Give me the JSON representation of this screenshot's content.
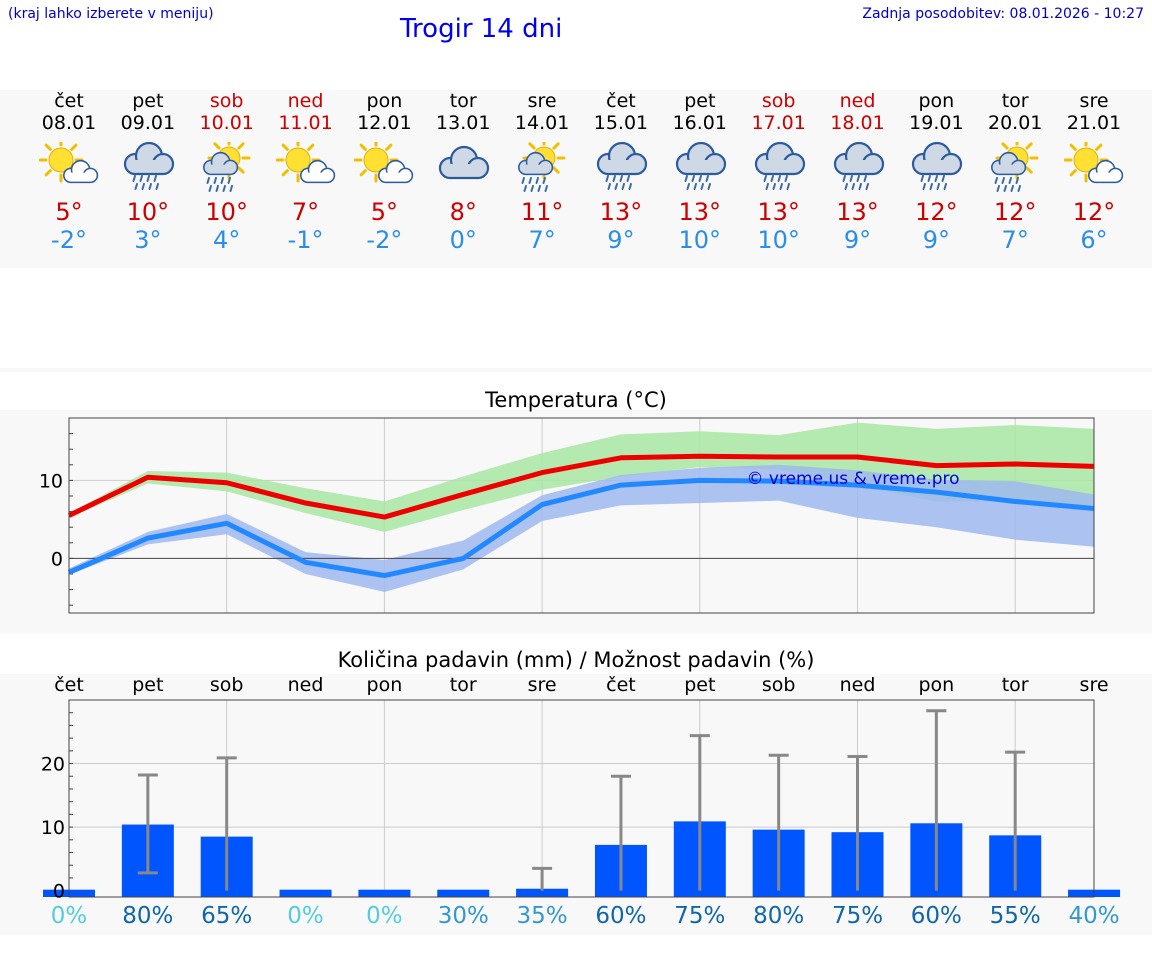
{
  "header": {
    "hint": "(kraj lahko izberete v meniju)",
    "title": "Trogir 14 dni",
    "updated": "Zadnja posodobitev: 08.01.2026 - 10:27"
  },
  "days": [
    {
      "name": "čet",
      "date": "08.01",
      "weekend": false,
      "icon": "sun-cloud-icon",
      "tmax": "5°",
      "tmin": "-2°"
    },
    {
      "name": "pet",
      "date": "09.01",
      "weekend": false,
      "icon": "rain-cloud-icon",
      "tmax": "10°",
      "tmin": "3°"
    },
    {
      "name": "sob",
      "date": "10.01",
      "weekend": true,
      "icon": "sun-rain-icon",
      "tmax": "10°",
      "tmin": "4°"
    },
    {
      "name": "ned",
      "date": "11.01",
      "weekend": true,
      "icon": "sun-cloud-icon",
      "tmax": "7°",
      "tmin": "-1°"
    },
    {
      "name": "pon",
      "date": "12.01",
      "weekend": false,
      "icon": "sun-cloud-icon",
      "tmax": "5°",
      "tmin": "-2°"
    },
    {
      "name": "tor",
      "date": "13.01",
      "weekend": false,
      "icon": "cloud-icon",
      "tmax": "8°",
      "tmin": "0°"
    },
    {
      "name": "sre",
      "date": "14.01",
      "weekend": false,
      "icon": "sun-rain-icon",
      "tmax": "11°",
      "tmin": "7°"
    },
    {
      "name": "čet",
      "date": "15.01",
      "weekend": false,
      "icon": "rain-cloud-icon",
      "tmax": "13°",
      "tmin": "9°"
    },
    {
      "name": "pet",
      "date": "16.01",
      "weekend": false,
      "icon": "rain-cloud-icon",
      "tmax": "13°",
      "tmin": "10°"
    },
    {
      "name": "sob",
      "date": "17.01",
      "weekend": true,
      "icon": "rain-cloud-icon",
      "tmax": "13°",
      "tmin": "10°"
    },
    {
      "name": "ned",
      "date": "18.01",
      "weekend": true,
      "icon": "rain-cloud-icon",
      "tmax": "13°",
      "tmin": "9°"
    },
    {
      "name": "pon",
      "date": "19.01",
      "weekend": false,
      "icon": "rain-cloud-icon",
      "tmax": "12°",
      "tmin": "9°"
    },
    {
      "name": "tor",
      "date": "20.01",
      "weekend": false,
      "icon": "sun-rain-icon",
      "tmax": "12°",
      "tmin": "7°"
    },
    {
      "name": "sre",
      "date": "21.01",
      "weekend": false,
      "icon": "sun-cloud-icon",
      "tmax": "12°",
      "tmin": "6°"
    }
  ],
  "colors": {
    "max_line": "#ee0000",
    "min_line": "#2288ff",
    "max_band": "#a8e6a3",
    "min_band": "#9fb8f0",
    "bar": "#0055ff",
    "whisker": "#888888",
    "prob_low": "#55ccdd",
    "prob_mid": "#3399cc",
    "prob_high": "#1166aa"
  },
  "chart_data": [
    {
      "type": "line",
      "title": "Temperatura (°C)",
      "watermark": "© vreme.us & vreme.pro",
      "x": [
        0,
        1,
        2,
        3,
        4,
        5,
        6,
        7,
        8,
        9,
        10,
        11,
        12,
        13
      ],
      "ylim": [
        -7,
        18
      ],
      "yticks": [
        0,
        10
      ],
      "ytick_labels": [
        "0",
        "10"
      ],
      "series": [
        {
          "name": "max",
          "values": [
            5.5,
            10.4,
            9.7,
            7.1,
            5.3,
            8.2,
            11.0,
            12.9,
            13.1,
            13.0,
            13.0,
            11.9,
            12.1,
            11.8
          ]
        },
        {
          "name": "min",
          "values": [
            -1.8,
            2.6,
            4.5,
            -0.5,
            -2.2,
            0.0,
            6.9,
            9.4,
            10.0,
            9.9,
            9.4,
            8.5,
            7.3,
            6.4
          ]
        },
        {
          "name": "max_band_high",
          "values": [
            5.8,
            11.2,
            11.0,
            9.0,
            7.3,
            10.5,
            13.5,
            15.9,
            16.3,
            15.8,
            17.4,
            16.6,
            17.1,
            16.6
          ]
        },
        {
          "name": "max_band_low",
          "values": [
            5.2,
            9.6,
            8.6,
            5.8,
            3.4,
            6.2,
            8.8,
            10.5,
            11.7,
            11.4,
            9.3,
            7.3,
            7.3,
            6.7
          ]
        },
        {
          "name": "min_band_high",
          "values": [
            -1.3,
            3.4,
            5.7,
            0.8,
            -0.2,
            2.3,
            8.1,
            10.7,
            11.6,
            12.0,
            11.3,
            10.1,
            9.9,
            8.2
          ]
        },
        {
          "name": "min_band_low",
          "values": [
            -2.1,
            1.8,
            3.1,
            -2.0,
            -4.3,
            -1.4,
            4.8,
            6.8,
            7.1,
            7.4,
            5.2,
            4.0,
            2.4,
            1.5
          ]
        }
      ]
    },
    {
      "type": "bar",
      "title": "Količina padavin (mm) / Možnost padavin (%)",
      "categories": [
        "čet",
        "pet",
        "sob",
        "ned",
        "pon",
        "tor",
        "sre",
        "čet",
        "pet",
        "sob",
        "ned",
        "pon",
        "tor",
        "sre"
      ],
      "values": [
        0,
        10.4,
        8.5,
        0,
        0,
        0,
        0.3,
        7.2,
        10.9,
        9.6,
        9.2,
        10.6,
        8.7,
        0
      ],
      "error_low": [
        0,
        2.8,
        0,
        0,
        0,
        0,
        0,
        0,
        0,
        0,
        0,
        0,
        0,
        0
      ],
      "error_high": [
        0,
        18.2,
        20.9,
        0,
        0,
        0.2,
        3.5,
        18.0,
        24.4,
        21.3,
        21.1,
        28.3,
        21.8,
        0
      ],
      "ylim": [
        -1,
        30
      ],
      "yticks": [
        0,
        10,
        20
      ],
      "ytick_labels": [
        "0",
        "10",
        "20"
      ],
      "probability": [
        "0%",
        "80%",
        "65%",
        "0%",
        "0%",
        "30%",
        "35%",
        "60%",
        "75%",
        "80%",
        "75%",
        "60%",
        "55%",
        "40%"
      ],
      "probability_values": [
        0,
        80,
        65,
        0,
        0,
        30,
        35,
        60,
        75,
        80,
        75,
        60,
        55,
        40
      ]
    }
  ]
}
